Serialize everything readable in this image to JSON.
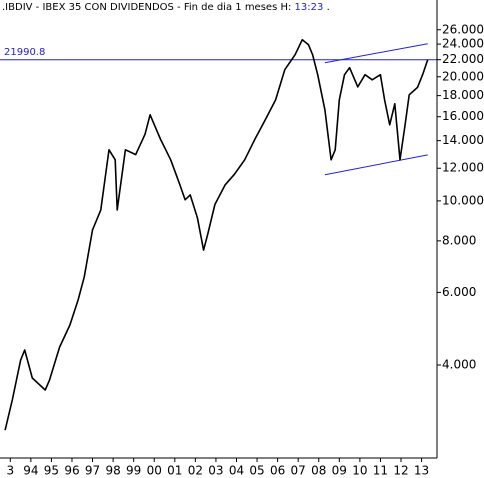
{
  "chart_data": {
    "type": "line",
    "title": ".IBDIV - IBEX 35 CON DIVIDENDOS - Fin de dia 1 meses H:",
    "time": "13:23",
    "title_end": ".",
    "log_scale": true,
    "xlim": [
      1992.5,
      2013.75
    ],
    "xticks": [
      {
        "value": 1993,
        "label": "3"
      },
      {
        "value": 1994,
        "label": "94"
      },
      {
        "value": 1995,
        "label": "95"
      },
      {
        "value": 1996,
        "label": "96"
      },
      {
        "value": 1997,
        "label": "97"
      },
      {
        "value": 1998,
        "label": "98"
      },
      {
        "value": 1999,
        "label": "99"
      },
      {
        "value": 2000,
        "label": "00"
      },
      {
        "value": 2001,
        "label": "01"
      },
      {
        "value": 2002,
        "label": "02"
      },
      {
        "value": 2003,
        "label": "03"
      },
      {
        "value": 2004,
        "label": "04"
      },
      {
        "value": 2005,
        "label": "05"
      },
      {
        "value": 2006,
        "label": "06"
      },
      {
        "value": 2007,
        "label": "07"
      },
      {
        "value": 2008,
        "label": "08"
      },
      {
        "value": 2009,
        "label": "09"
      },
      {
        "value": 2010,
        "label": "10"
      },
      {
        "value": 2011,
        "label": "11"
      },
      {
        "value": 2012,
        "label": "12"
      },
      {
        "value": 2013,
        "label": "13"
      }
    ],
    "ylim": [
      2380,
      30700
    ],
    "yticks": [
      {
        "value": 26000,
        "label": "26.000"
      },
      {
        "value": 24000,
        "label": "24.000"
      },
      {
        "value": 22000,
        "label": "22.000"
      },
      {
        "value": 20000,
        "label": "20.000"
      },
      {
        "value": 18000,
        "label": "18.000"
      },
      {
        "value": 16000,
        "label": "16.000"
      },
      {
        "value": 14000,
        "label": "14.000"
      },
      {
        "value": 12000,
        "label": "12.000"
      },
      {
        "value": 10000,
        "label": "10.000"
      },
      {
        "value": 8000,
        "label": "8.000"
      },
      {
        "value": 6000,
        "label": "6.000"
      },
      {
        "value": 4000,
        "label": "4.000"
      }
    ],
    "reference_line": {
      "value": 21990.8,
      "color": "#2222cc"
    },
    "trendlines": [
      {
        "x": [
          2008.3,
          2013.3
        ],
        "values": [
          21630,
          24050
        ],
        "color": "#2222cc"
      },
      {
        "x": [
          2008.3,
          2013.3
        ],
        "values": [
          11570,
          12930
        ],
        "color": "#2222cc"
      }
    ],
    "series": [
      {
        "name": ".IBDIV",
        "color": "#000000",
        "x": [
          1992.75,
          1993.1,
          1993.5,
          1993.7,
          1994.07,
          1994.7,
          1994.9,
          1995.4,
          1995.9,
          1996.3,
          1996.6,
          1997.0,
          1997.4,
          1997.8,
          1998.1,
          1998.2,
          1998.6,
          1999.1,
          1999.55,
          1999.8,
          2000.3,
          2000.8,
          2001.25,
          2001.5,
          2001.75,
          2002.1,
          2002.4,
          2002.6,
          2002.95,
          2003.45,
          2003.9,
          2004.4,
          2004.9,
          2005.4,
          2005.9,
          2006.35,
          2006.85,
          2007.2,
          2007.5,
          2007.7,
          2007.95,
          2008.3,
          2008.6,
          2008.8,
          2009.0,
          2009.25,
          2009.5,
          2009.9,
          2010.25,
          2010.6,
          2011.0,
          2011.2,
          2011.45,
          2011.7,
          2011.95,
          2012.2,
          2012.4,
          2012.8,
          2013.05,
          2013.3
        ],
        "values": [
          2780,
          3290,
          4110,
          4350,
          3720,
          3480,
          3670,
          4420,
          5000,
          5750,
          6550,
          8500,
          9510,
          13300,
          12580,
          9510,
          13300,
          12950,
          14500,
          16170,
          14130,
          12580,
          10940,
          10060,
          10340,
          9100,
          7600,
          8300,
          9800,
          10940,
          11600,
          12580,
          14130,
          15730,
          17580,
          20800,
          22620,
          24600,
          23900,
          22620,
          20230,
          16630,
          12580,
          13300,
          17580,
          20230,
          21040,
          18900,
          20230,
          19660,
          20230,
          17580,
          15290,
          17200,
          12580,
          15290,
          18080,
          18850,
          20230,
          21990
        ]
      }
    ]
  }
}
